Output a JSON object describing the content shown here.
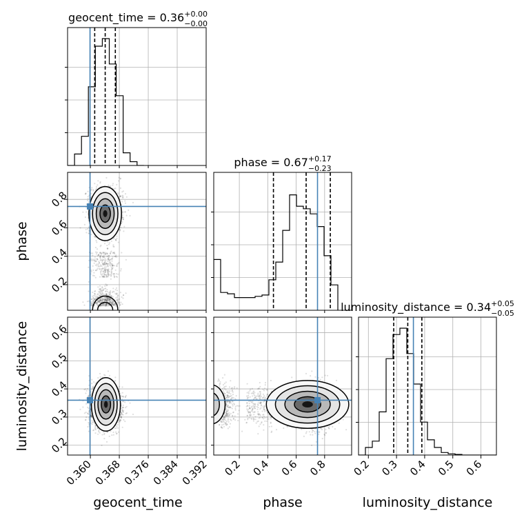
{
  "chart_data": {
    "type": "corner",
    "parameters": [
      "geocent_time",
      "phase",
      "luminosity_distance"
    ],
    "titles": [
      {
        "param": "geocent_time",
        "prefix": "geocent_time = ",
        "median": "0.36",
        "plus": "+0.00",
        "minus": "−0.00"
      },
      {
        "param": "phase",
        "prefix": "phase = ",
        "median": "0.67",
        "plus": "+0.17",
        "minus": "−0.23"
      },
      {
        "param": "luminosity_distance",
        "prefix": "luminosity_distance = ",
        "median": "0.34",
        "plus": "+0.05",
        "minus": "−0.05"
      }
    ],
    "axis_ranges": {
      "geocent_time": [
        0.3537,
        0.392
      ],
      "phase": [
        0.02,
        0.99
      ],
      "luminosity_distance": [
        0.165,
        0.655
      ]
    },
    "ticks": {
      "geocent_time": [
        "0.360",
        "0.368",
        "0.376",
        "0.384",
        "0.392"
      ],
      "phase": [
        "0.2",
        "0.4",
        "0.6",
        "0.8"
      ],
      "luminosity_distance": [
        "0.2",
        "0.3",
        "0.4",
        "0.5",
        "0.6"
      ]
    },
    "truths": {
      "geocent_time": 0.3599,
      "phase": 0.75,
      "luminosity_distance": 0.36
    },
    "quantiles": {
      "geocent_time": [
        0.3612,
        0.3641,
        0.3669
      ],
      "phase": [
        0.44,
        0.67,
        0.84
      ],
      "luminosity_distance": [
        0.29,
        0.34,
        0.39
      ]
    },
    "histograms": {
      "geocent_time": {
        "edges_start": 0.3537,
        "bin_width": 0.00192,
        "counts": [
          0.0,
          0.09,
          0.23,
          0.62,
          0.94,
          1.0,
          0.8,
          0.55,
          0.1,
          0.03,
          0.0
        ]
      },
      "phase": {
        "edges_start": 0.02,
        "bin_width": 0.0485,
        "counts": [
          0.4,
          0.14,
          0.13,
          0.1,
          0.1,
          0.1,
          0.11,
          0.12,
          0.24,
          0.38,
          0.63,
          0.91,
          0.82,
          0.8,
          0.76,
          0.66,
          0.43,
          0.2
        ]
      },
      "luminosity_distance": {
        "edges_start": 0.165,
        "bin_width": 0.0245,
        "counts": [
          0.0,
          0.06,
          0.11,
          0.34,
          0.76,
          0.95,
          1.0,
          0.8,
          0.56,
          0.26,
          0.12,
          0.06,
          0.02,
          0.01,
          0.005,
          0.0,
          0.0,
          0.0,
          0.0,
          0.0
        ]
      }
    },
    "grid": true,
    "truth_color": "#4682b4",
    "contour_color": "#000000",
    "xlabels": [
      "geocent_time",
      "phase",
      "luminosity_distance"
    ],
    "ylabels": [
      "phase",
      "luminosity_distance"
    ]
  }
}
